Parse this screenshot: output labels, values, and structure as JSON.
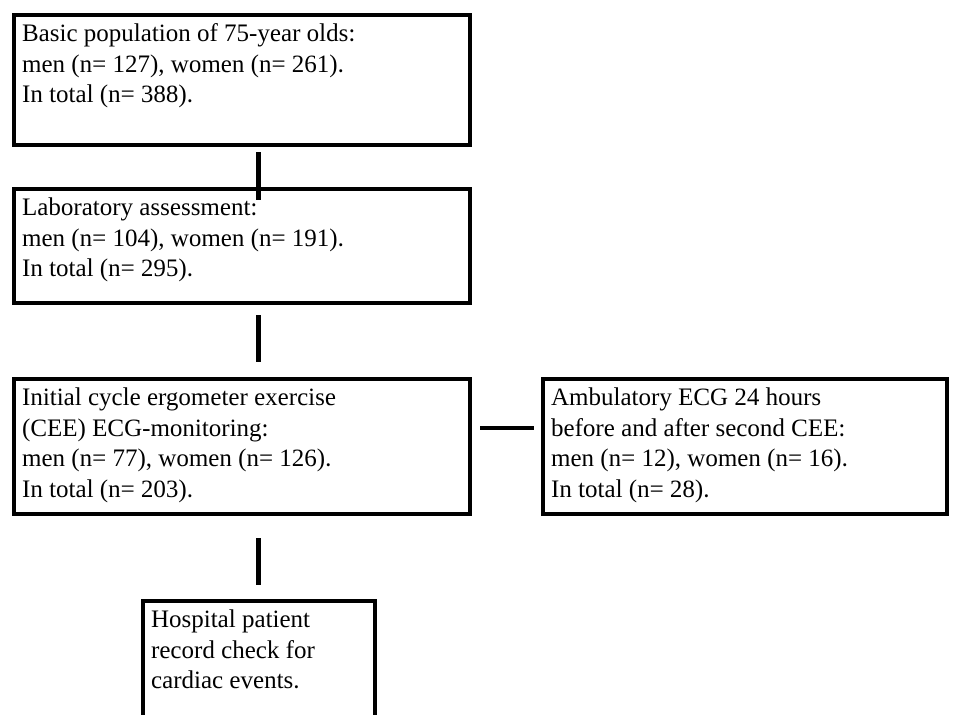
{
  "nodes": [
    {
      "lines": [
        "Basic population of 75-year olds:",
        "men (n= 127), women (n= 261).",
        "In total (n= 388)."
      ]
    },
    {
      "lines": [
        "Laboratory assessment:",
        "men (n= 104), women (n= 191).",
        "In total (n= 295)."
      ]
    },
    {
      "lines": [
        "Initial cycle ergometer exercise",
        "(CEE) ECG-monitoring:",
        "men (n= 77), women (n= 126).",
        "In total (n= 203)."
      ]
    },
    {
      "lines": [
        "Ambulatory ECG 24 hours",
        "before and after second CEE:",
        "men (n= 12), women (n= 16).",
        "In total (n= 28)."
      ]
    },
    {
      "lines": [
        "Hospital patient",
        "record check for",
        "cardiac events."
      ]
    }
  ]
}
